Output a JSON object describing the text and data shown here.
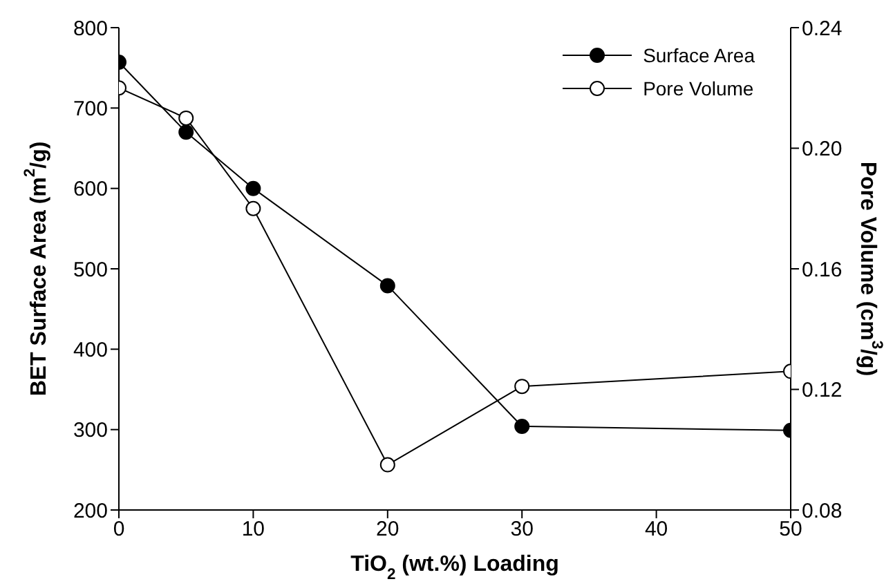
{
  "chart_data": {
    "type": "line",
    "xlabel": "TiO$_{2}$ (wt.%) Loading",
    "ylabel": "BET Surface Area (m$^{2}$/g)",
    "y2label": "Pore Volume (cm$^{3}$/g)",
    "x": [
      0,
      5,
      10,
      20,
      30,
      50
    ],
    "series": [
      {
        "name": "Surface Area",
        "color": "#000000",
        "values": [
          757,
          670,
          600,
          479,
          304,
          299
        ]
      },
      {
        "name": "Pore Volume",
        "color": "#000000",
        "axis": "y2",
        "values": [
          0.22,
          0.21,
          0.18,
          0.095,
          0.121,
          0.126
        ]
      }
    ],
    "xlim": [
      0,
      50
    ],
    "xticks": [
      0,
      10,
      20,
      30,
      40,
      50
    ],
    "ylim": [
      200,
      800
    ],
    "yticks": [
      200,
      300,
      400,
      500,
      600,
      700,
      800
    ],
    "y2lim": [
      0.08,
      0.24
    ],
    "y2ticks": [
      {
        "value": 0.08,
        "label": "0.08"
      },
      {
        "value": 0.12,
        "label": "0.12"
      },
      {
        "value": 0.16,
        "label": "0.16"
      },
      {
        "value": 0.2,
        "label": "0.20"
      },
      {
        "value": 0.24,
        "label": "0.24"
      }
    ],
    "legend": "top right",
    "marker": "circle",
    "line_style": "solid",
    "grid": false
  }
}
